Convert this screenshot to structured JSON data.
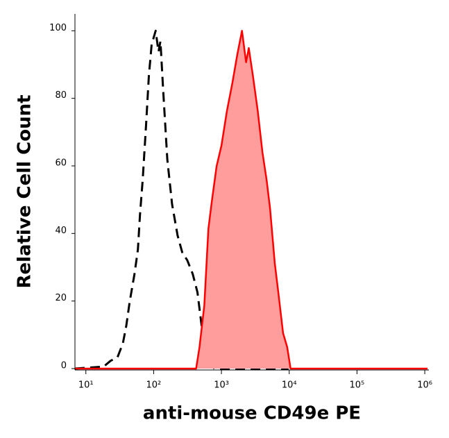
{
  "chart_data": {
    "type": "histogram-overlay",
    "x_label": "anti-mouse CD49e PE",
    "y_label": "Relative Cell Count",
    "xscale": "log",
    "xlim": [
      6.9,
      1150000
    ],
    "ylim": [
      0,
      105
    ],
    "xticks": [
      {
        "value": 10,
        "label": "10¹"
      },
      {
        "value": 100,
        "label": "10²"
      },
      {
        "value": 1000,
        "label": "10³"
      },
      {
        "value": 10000,
        "label": "10⁴"
      },
      {
        "value": 100000,
        "label": "10⁵"
      },
      {
        "value": 1000000,
        "label": "10⁶"
      }
    ],
    "yticks": [
      0,
      20,
      40,
      60,
      80,
      100
    ],
    "series": [
      {
        "color": "#000000",
        "dashed": true,
        "x": [
          6.9,
          18.3,
          23.1,
          29.2,
          35.1,
          39.4,
          44.3,
          52.1,
          58.6,
          62.8,
          68.9,
          77.4,
          85.0,
          93.3,
          107,
          118,
          126,
          138,
          159,
          187,
          226,
          266,
          313,
          377,
          443,
          498,
          559,
          673,
          792,
          9770
        ],
        "values": [
          0,
          0.6,
          2.3,
          3.3,
          7.4,
          12.6,
          19.8,
          28,
          35.2,
          45.5,
          55.8,
          72.2,
          86.6,
          95.9,
          100,
          93.8,
          96.9,
          82.5,
          61.9,
          48.6,
          39.3,
          34.2,
          32.1,
          28,
          22.6,
          14.4,
          6.2,
          1.2,
          0,
          0
        ]
      },
      {
        "color": "#ff0000",
        "fill": "#ff9c9c",
        "dashed": false,
        "x": [
          6.9,
          423,
          475,
          559,
          643,
          722,
          849,
          1000,
          1205,
          1452,
          1708,
          2010,
          2310,
          2535,
          2915,
          3430,
          4035,
          4645,
          5215,
          6140,
          6890,
          8110,
          9330,
          10480,
          1100000
        ],
        "values": [
          0,
          0,
          6.4,
          18.7,
          41.4,
          49.6,
          59.9,
          66,
          76.3,
          84.6,
          92.8,
          100,
          90.7,
          94.9,
          86.6,
          76.3,
          64,
          55.8,
          47.5,
          31.1,
          22.8,
          10.5,
          6.4,
          0,
          0
        ]
      }
    ]
  }
}
